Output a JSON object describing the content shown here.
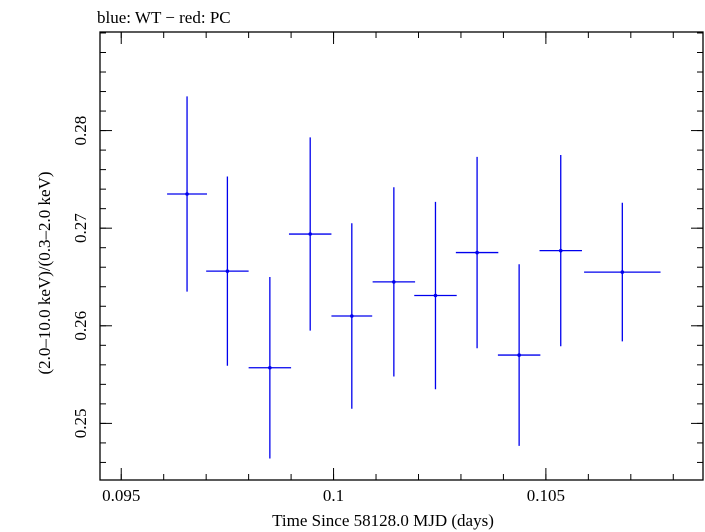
{
  "chart_data": {
    "type": "scatter",
    "title": "blue: WT − red: PC",
    "xlabel": "Time Since 58128.0 MJD (days)",
    "ylabel": "(2.0–10.0 keV)/(0.3–2.0 keV)",
    "xlim": [
      0.0945,
      0.1087
    ],
    "ylim": [
      0.2442,
      0.2901
    ],
    "x_ticks": [
      {
        "value": 0.095,
        "label": "0.095"
      },
      {
        "value": 0.1,
        "label": "0.1"
      },
      {
        "value": 0.105,
        "label": "0.105"
      }
    ],
    "y_ticks": [
      {
        "value": 0.25,
        "label": "0.25"
      },
      {
        "value": 0.26,
        "label": "0.26"
      },
      {
        "value": 0.27,
        "label": "0.27"
      },
      {
        "value": 0.28,
        "label": "0.28"
      }
    ],
    "x_minor_step": 0.001,
    "y_minor_step": 0.002,
    "series": [
      {
        "name": "WT",
        "color": "#0000ee",
        "points": [
          {
            "x": 0.09655,
            "xerr": 0.00047,
            "y": 0.2735,
            "yerr": 0.01
          },
          {
            "x": 0.0975,
            "xerr": 0.0005,
            "y": 0.2656,
            "yerr": 0.0097
          },
          {
            "x": 0.0985,
            "xerr": 0.0005,
            "y": 0.2557,
            "yerr": 0.0093
          },
          {
            "x": 0.09945,
            "xerr": 0.0005,
            "y": 0.2694,
            "yerr": 0.0099
          },
          {
            "x": 0.10043,
            "xerr": 0.00048,
            "y": 0.261,
            "yerr": 0.0095
          },
          {
            "x": 0.10142,
            "xerr": 0.0005,
            "y": 0.2645,
            "yerr": 0.0097
          },
          {
            "x": 0.1024,
            "xerr": 0.0005,
            "y": 0.2631,
            "yerr": 0.0096
          },
          {
            "x": 0.10338,
            "xerr": 0.0005,
            "y": 0.2675,
            "yerr": 0.0098
          },
          {
            "x": 0.10437,
            "xerr": 0.0005,
            "y": 0.257,
            "yerr": 0.0093
          },
          {
            "x": 0.10535,
            "xerr": 0.0005,
            "y": 0.2677,
            "yerr": 0.0098
          },
          {
            "x": 0.1068,
            "xerr": 0.0009,
            "y": 0.2655,
            "yerr": 0.0071
          }
        ]
      }
    ]
  }
}
